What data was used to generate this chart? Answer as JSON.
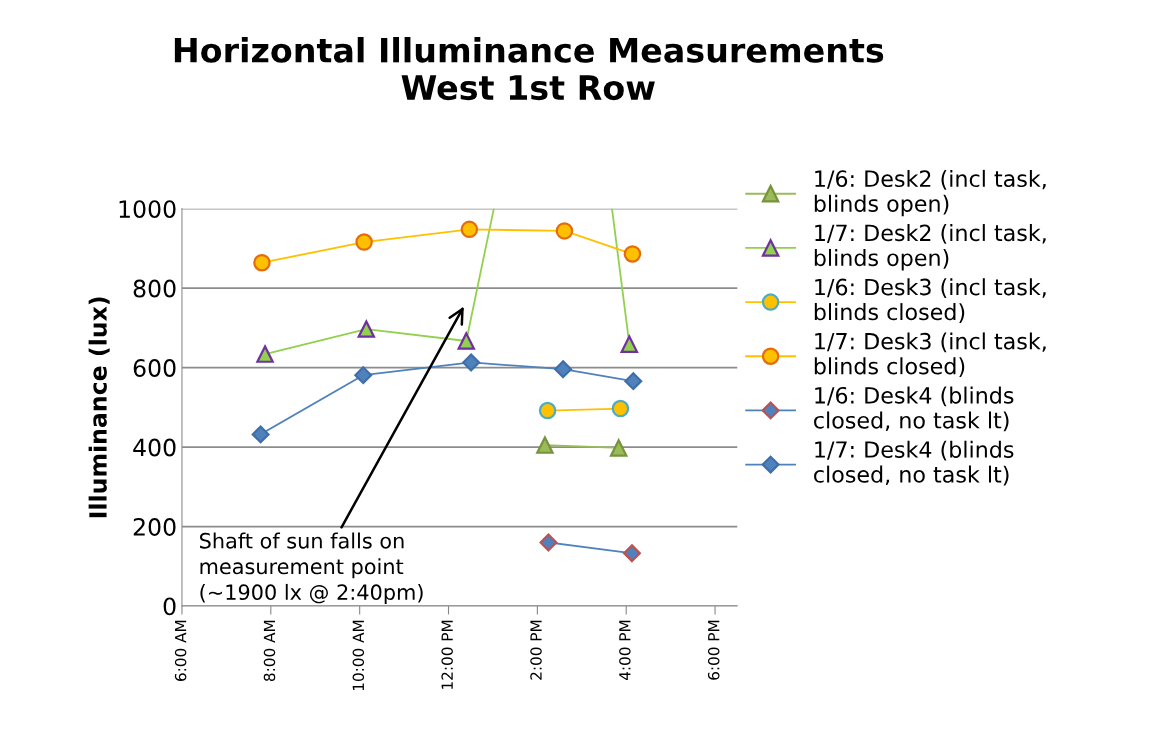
{
  "chart_data": {
    "type": "line",
    "title": "Horizontal Illuminance Measurements\nWest 1st Row",
    "ylabel": "Illuminance (lux)",
    "xlim": [
      6,
      18.5
    ],
    "xticks": [
      {
        "value": 6,
        "label": "6:00 AM"
      },
      {
        "value": 8,
        "label": "8:00 AM"
      },
      {
        "value": 10,
        "label": "10:00 AM"
      },
      {
        "value": 12,
        "label": "12:00 PM"
      },
      {
        "value": 14,
        "label": "2:00 PM"
      },
      {
        "value": 16,
        "label": "4:00 PM"
      },
      {
        "value": 18,
        "label": "6:00 PM"
      }
    ],
    "ylim": [
      0,
      1000
    ],
    "yticks": [
      0,
      200,
      400,
      600,
      800,
      1000
    ],
    "grid": "y",
    "legend": "right",
    "line_style": "solid",
    "annotations": [
      "Shaft of sun falls on\nmeasurement point\n(~1900 lx @ 2:40pm)"
    ],
    "series": [
      {
        "name": "1/6: Desk2 (incl task,\nblinds open)",
        "color": "#9bbb59",
        "marker": "triangle",
        "x": [
          14.17,
          15.83
        ],
        "values": [
          405,
          398
        ]
      },
      {
        "name": "1/7: Desk2 (incl task,\nblinds open)",
        "color": "#92d050",
        "marker": "triangle",
        "x": [
          7.87,
          10.15,
          12.4,
          13.02,
          14.67,
          15.68,
          16.07
        ],
        "values": [
          634,
          697,
          667,
          1000,
          null,
          1000,
          659
        ]
      },
      {
        "name": "1/6: Desk3 (incl task,\nblinds closed)",
        "color": "#ffc000",
        "marker": "circle",
        "x": [
          14.23,
          15.87
        ],
        "values": [
          492,
          497
        ]
      },
      {
        "name": "1/7: Desk3 (incl task,\nblinds closed)",
        "color": "#ffc000",
        "marker": "circle",
        "x": [
          7.8,
          10.1,
          12.47,
          14.61,
          16.14
        ],
        "values": [
          864,
          916,
          948,
          944,
          886
        ]
      },
      {
        "name": "1/6: Desk4 (blinds\nclosed, no task lt)",
        "color": "#4f81bd",
        "marker": "diamond",
        "x": [
          14.25,
          16.13
        ],
        "values": [
          160,
          133
        ]
      },
      {
        "name": "1/7: Desk4 (blinds\nclosed, no task lt)",
        "color": "#4f81bd",
        "marker": "diamond",
        "x": [
          7.77,
          10.08,
          12.51,
          14.58,
          16.16
        ],
        "values": [
          432,
          581,
          613,
          596,
          566
        ]
      }
    ]
  }
}
